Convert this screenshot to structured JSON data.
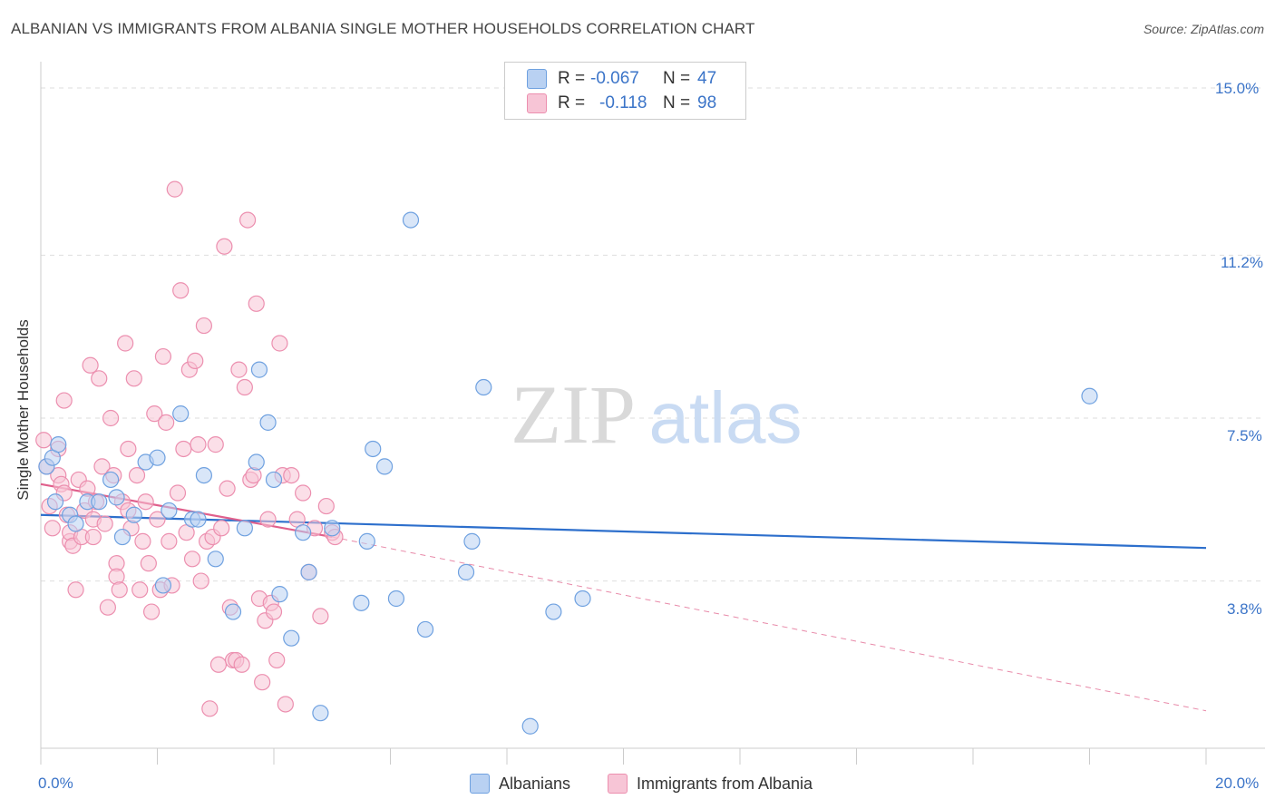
{
  "title": "ALBANIAN VS IMMIGRANTS FROM ALBANIA SINGLE MOTHER HOUSEHOLDS CORRELATION CHART",
  "source": "Source: ZipAtlas.com",
  "watermark": {
    "zip": "ZIP",
    "atlas": "atlas"
  },
  "legend": {
    "series1": {
      "r_label": "R =",
      "r_value": "-0.067",
      "n_label": "N =",
      "n_value": "47"
    },
    "series2": {
      "r_label": "R =",
      "r_value": "-0.118",
      "n_label": "N =",
      "n_value": "98"
    }
  },
  "chart_data": {
    "type": "scatter",
    "title": "ALBANIAN VS IMMIGRANTS FROM ALBANIA SINGLE MOTHER HOUSEHOLDS CORRELATION CHART",
    "xlabel": "",
    "ylabel": "Single Mother Households",
    "xlim": [
      0,
      20
    ],
    "ylim": [
      0,
      15.7
    ],
    "x_tick_labels": [
      "0.0%",
      "20.0%"
    ],
    "y_ticks": [
      3.8,
      7.5,
      11.2,
      15.0
    ],
    "y_tick_labels": [
      "3.8%",
      "7.5%",
      "11.2%",
      "15.0%"
    ],
    "grid": true,
    "legend_position": "top-center",
    "series": [
      {
        "name": "Albanians",
        "color": "#6fa1e0",
        "fill": "#b9d1f2",
        "trend": {
          "x": [
            0,
            20
          ],
          "y": [
            5.3,
            4.55
          ],
          "color": "#2d6fcc"
        },
        "points": [
          [
            0.1,
            6.4
          ],
          [
            0.2,
            6.6
          ],
          [
            0.25,
            5.6
          ],
          [
            0.3,
            6.9
          ],
          [
            0.5,
            5.3
          ],
          [
            0.6,
            5.1
          ],
          [
            0.8,
            5.6
          ],
          [
            1.0,
            5.6
          ],
          [
            1.2,
            6.1
          ],
          [
            1.3,
            5.7
          ],
          [
            1.4,
            4.8
          ],
          [
            1.6,
            5.3
          ],
          [
            1.8,
            6.5
          ],
          [
            2.0,
            6.6
          ],
          [
            2.1,
            3.7
          ],
          [
            2.2,
            5.4
          ],
          [
            2.4,
            7.6
          ],
          [
            2.6,
            5.2
          ],
          [
            2.7,
            5.2
          ],
          [
            2.8,
            6.2
          ],
          [
            3.0,
            4.3
          ],
          [
            3.3,
            3.1
          ],
          [
            3.5,
            5.0
          ],
          [
            3.7,
            6.5
          ],
          [
            3.75,
            8.6
          ],
          [
            3.9,
            7.4
          ],
          [
            4.0,
            6.1
          ],
          [
            4.1,
            3.5
          ],
          [
            4.3,
            2.5
          ],
          [
            4.5,
            4.9
          ],
          [
            4.6,
            4.0
          ],
          [
            4.8,
            0.8
          ],
          [
            5.0,
            5.0
          ],
          [
            5.5,
            3.3
          ],
          [
            5.6,
            4.7
          ],
          [
            5.7,
            6.8
          ],
          [
            5.9,
            6.4
          ],
          [
            6.1,
            3.4
          ],
          [
            6.35,
            12.0
          ],
          [
            6.6,
            2.7
          ],
          [
            7.3,
            4.0
          ],
          [
            7.4,
            4.7
          ],
          [
            7.6,
            8.2
          ],
          [
            8.4,
            0.5
          ],
          [
            8.8,
            3.1
          ],
          [
            9.3,
            3.4
          ],
          [
            18.0,
            8.0
          ]
        ]
      },
      {
        "name": "Immigrants from Albania",
        "color": "#ec8faf",
        "fill": "#f7c5d6",
        "trend": {
          "x": [
            0,
            5
          ],
          "y": [
            6.0,
            4.8
          ],
          "color": "#e0608c"
        },
        "trend_extended": {
          "x": [
            5,
            20
          ],
          "y": [
            4.8,
            0.85
          ],
          "color": "#e88aa9"
        },
        "points": [
          [
            0.05,
            7.0
          ],
          [
            0.1,
            6.4
          ],
          [
            0.15,
            5.5
          ],
          [
            0.2,
            5.0
          ],
          [
            0.3,
            6.8
          ],
          [
            0.3,
            6.2
          ],
          [
            0.35,
            6.0
          ],
          [
            0.4,
            7.9
          ],
          [
            0.4,
            5.8
          ],
          [
            0.45,
            5.3
          ],
          [
            0.5,
            4.7
          ],
          [
            0.5,
            4.9
          ],
          [
            0.55,
            4.6
          ],
          [
            0.6,
            3.6
          ],
          [
            0.65,
            6.1
          ],
          [
            0.7,
            4.8
          ],
          [
            0.75,
            5.4
          ],
          [
            0.8,
            5.9
          ],
          [
            0.85,
            8.7
          ],
          [
            0.9,
            5.2
          ],
          [
            0.9,
            4.8
          ],
          [
            0.95,
            5.6
          ],
          [
            1.0,
            8.4
          ],
          [
            1.05,
            6.4
          ],
          [
            1.1,
            5.1
          ],
          [
            1.15,
            3.2
          ],
          [
            1.2,
            7.5
          ],
          [
            1.25,
            6.2
          ],
          [
            1.3,
            4.2
          ],
          [
            1.3,
            3.9
          ],
          [
            1.35,
            3.6
          ],
          [
            1.4,
            5.6
          ],
          [
            1.45,
            9.2
          ],
          [
            1.5,
            6.8
          ],
          [
            1.5,
            5.4
          ],
          [
            1.55,
            5.0
          ],
          [
            1.6,
            8.4
          ],
          [
            1.65,
            6.2
          ],
          [
            1.7,
            3.6
          ],
          [
            1.75,
            4.7
          ],
          [
            1.8,
            5.6
          ],
          [
            1.85,
            4.2
          ],
          [
            1.9,
            3.1
          ],
          [
            1.95,
            7.6
          ],
          [
            2.0,
            5.2
          ],
          [
            2.05,
            3.6
          ],
          [
            2.1,
            8.9
          ],
          [
            2.15,
            7.4
          ],
          [
            2.2,
            4.7
          ],
          [
            2.25,
            3.7
          ],
          [
            2.3,
            12.7
          ],
          [
            2.35,
            5.8
          ],
          [
            2.4,
            10.4
          ],
          [
            2.45,
            6.8
          ],
          [
            2.5,
            4.9
          ],
          [
            2.55,
            8.6
          ],
          [
            2.6,
            4.3
          ],
          [
            2.65,
            8.8
          ],
          [
            2.7,
            6.9
          ],
          [
            2.75,
            3.8
          ],
          [
            2.8,
            9.6
          ],
          [
            2.85,
            4.7
          ],
          [
            2.9,
            0.9
          ],
          [
            2.95,
            4.8
          ],
          [
            3.0,
            6.9
          ],
          [
            3.05,
            1.9
          ],
          [
            3.1,
            5.0
          ],
          [
            3.15,
            11.4
          ],
          [
            3.2,
            5.9
          ],
          [
            3.25,
            3.2
          ],
          [
            3.3,
            2.0
          ],
          [
            3.35,
            2.0
          ],
          [
            3.4,
            8.6
          ],
          [
            3.45,
            1.9
          ],
          [
            3.5,
            8.2
          ],
          [
            3.55,
            12.0
          ],
          [
            3.6,
            6.1
          ],
          [
            3.65,
            6.2
          ],
          [
            3.7,
            10.1
          ],
          [
            3.75,
            3.4
          ],
          [
            3.8,
            1.5
          ],
          [
            3.85,
            2.9
          ],
          [
            3.9,
            5.2
          ],
          [
            3.95,
            3.3
          ],
          [
            4.0,
            3.1
          ],
          [
            4.05,
            2.0
          ],
          [
            4.1,
            9.2
          ],
          [
            4.15,
            6.2
          ],
          [
            4.2,
            1.0
          ],
          [
            4.3,
            6.2
          ],
          [
            4.4,
            5.2
          ],
          [
            4.5,
            5.8
          ],
          [
            4.6,
            4.0
          ],
          [
            4.7,
            5.0
          ],
          [
            4.8,
            3.0
          ],
          [
            4.9,
            5.5
          ],
          [
            5.0,
            4.9
          ],
          [
            5.05,
            4.8
          ]
        ]
      }
    ]
  },
  "bottom_legend": {
    "item1": "Albanians",
    "item2": "Immigrants from Albania"
  }
}
